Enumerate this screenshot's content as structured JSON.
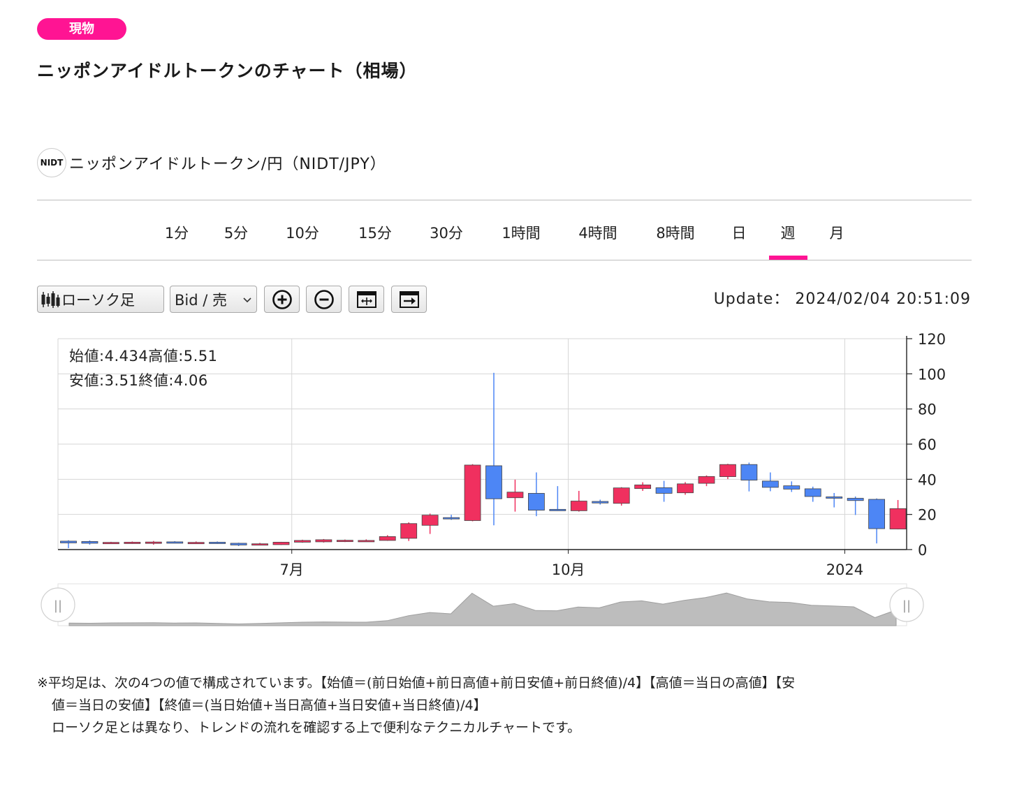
{
  "badge": "現物",
  "page_title": "ニッポンアイドルトークンのチャート（相場）",
  "pair": {
    "logo_text": "NIDT",
    "name": "ニッポンアイドルトークン/円（NIDT/JPY）"
  },
  "tabs": [
    {
      "label": "1分"
    },
    {
      "label": "5分"
    },
    {
      "label": "10分"
    },
    {
      "label": "15分"
    },
    {
      "label": "30分"
    },
    {
      "label": "1時間"
    },
    {
      "label": "4時間"
    },
    {
      "label": "8時間"
    },
    {
      "label": "日"
    },
    {
      "label": "週",
      "active": true
    },
    {
      "label": "月"
    }
  ],
  "toolbar": {
    "chart_type_label": "ローソク足",
    "price_side_label": "Bid / 売",
    "icons": [
      "candlestick-icon",
      "chevron-down-icon",
      "zoom-in-icon",
      "zoom-out-icon",
      "fit-chart-icon",
      "jump-to-latest-icon"
    ]
  },
  "update": {
    "label": "Update：",
    "value": "2024/02/04 20:51:09"
  },
  "ohlc": {
    "open_label": "始値:",
    "open": "4.434",
    "high_label": "高値:",
    "high": "5.51",
    "low_label": "安値:",
    "low": "3.51",
    "close_label": "終値:",
    "close": "4.06"
  },
  "colors": {
    "accent": "#ff1493",
    "up": "#f0305f",
    "down": "#4d86f5",
    "navigator": "#bdbdbd"
  },
  "chart_data": {
    "type": "candlestick",
    "timeframe": "週",
    "yticks": [
      0,
      20,
      40,
      60,
      80,
      100,
      120
    ],
    "ylim": [
      0,
      120
    ],
    "xtick_labels": [
      {
        "label": "7月",
        "index": 10.5
      },
      {
        "label": "10月",
        "index": 23.5
      },
      {
        "label": "2024",
        "index": 36.5
      }
    ],
    "candles": [
      {
        "o": 4.8,
        "h": 5.3,
        "l": 0.8,
        "c": 3.8
      },
      {
        "o": 4.6,
        "h": 5.2,
        "l": 2.8,
        "c": 3.6
      },
      {
        "o": 3.6,
        "h": 4.4,
        "l": 3.2,
        "c": 4.1
      },
      {
        "o": 3.7,
        "h": 4.6,
        "l": 3.3,
        "c": 4.2
      },
      {
        "o": 3.8,
        "h": 4.9,
        "l": 2.8,
        "c": 4.3
      },
      {
        "o": 4.4,
        "h": 4.8,
        "l": 3.6,
        "c": 3.9
      },
      {
        "o": 3.6,
        "h": 4.6,
        "l": 3.3,
        "c": 4.1
      },
      {
        "o": 4.2,
        "h": 4.6,
        "l": 3.3,
        "c": 3.4
      },
      {
        "o": 3.6,
        "h": 3.9,
        "l": 2.0,
        "c": 2.6
      },
      {
        "o": 2.8,
        "h": 3.8,
        "l": 2.6,
        "c": 3.3
      },
      {
        "o": 2.8,
        "h": 4.4,
        "l": 2.6,
        "c": 4.2
      },
      {
        "o": 4.2,
        "h": 5.6,
        "l": 3.9,
        "c": 5.2
      },
      {
        "o": 4.4,
        "h": 6.0,
        "l": 4.0,
        "c": 5.6
      },
      {
        "o": 4.6,
        "h": 5.7,
        "l": 4.3,
        "c": 5.3
      },
      {
        "o": 4.6,
        "h": 5.8,
        "l": 4.4,
        "c": 5.2
      },
      {
        "o": 5.2,
        "h": 8.2,
        "l": 5.0,
        "c": 7.4
      },
      {
        "o": 6.4,
        "h": 15.5,
        "l": 4.9,
        "c": 14.8
      },
      {
        "o": 13.8,
        "h": 20.5,
        "l": 8.9,
        "c": 19.6
      },
      {
        "o": 18.2,
        "h": 19.8,
        "l": 16.9,
        "c": 17.6
      },
      {
        "o": 16.5,
        "h": 48.6,
        "l": 16.1,
        "c": 48.1
      },
      {
        "o": 47.7,
        "h": 100.6,
        "l": 13.8,
        "c": 28.9
      },
      {
        "o": 29.5,
        "h": 39.8,
        "l": 21.6,
        "c": 32.7
      },
      {
        "o": 32.0,
        "h": 43.9,
        "l": 19.0,
        "c": 22.4
      },
      {
        "o": 22.9,
        "h": 36.1,
        "l": 22.0,
        "c": 22.1
      },
      {
        "o": 22.1,
        "h": 33.4,
        "l": 21.6,
        "c": 27.6
      },
      {
        "o": 27.4,
        "h": 28.4,
        "l": 25.6,
        "c": 26.5
      },
      {
        "o": 26.3,
        "h": 35.5,
        "l": 25.0,
        "c": 35.1
      },
      {
        "o": 34.7,
        "h": 38.3,
        "l": 33.4,
        "c": 36.8
      },
      {
        "o": 35.2,
        "h": 39.1,
        "l": 27.2,
        "c": 32.0
      },
      {
        "o": 32.3,
        "h": 38.4,
        "l": 31.2,
        "c": 37.4
      },
      {
        "o": 37.7,
        "h": 42.2,
        "l": 36.1,
        "c": 41.6
      },
      {
        "o": 41.5,
        "h": 48.8,
        "l": 40.1,
        "c": 48.4
      },
      {
        "o": 48.4,
        "h": 49.5,
        "l": 33.1,
        "c": 39.5
      },
      {
        "o": 39.0,
        "h": 43.9,
        "l": 33.2,
        "c": 35.4
      },
      {
        "o": 36.3,
        "h": 38.8,
        "l": 32.8,
        "c": 34.4
      },
      {
        "o": 34.6,
        "h": 35.8,
        "l": 27.2,
        "c": 30.2
      },
      {
        "o": 30.0,
        "h": 32.2,
        "l": 24.0,
        "c": 29.2
      },
      {
        "o": 29.2,
        "h": 30.2,
        "l": 19.7,
        "c": 27.9
      },
      {
        "o": 28.6,
        "h": 29.1,
        "l": 3.5,
        "c": 11.9
      },
      {
        "o": 11.7,
        "h": 28.2,
        "l": 11.5,
        "c": 23.3
      }
    ],
    "navigator": {
      "handle_left": "||",
      "handle_right": "||"
    }
  },
  "note": {
    "line1": "※平均足は、次の4つの値で構成されています。【始値＝(前日始値+前日高値+前日安値+前日終値)/4】【高値＝当日の高値】【安",
    "line2": "値＝当日の安値】【終値＝(当日始値+当日高値+当日安値+当日終値)/4】",
    "line3": "ローソク足とは異なり、トレンドの流れを確認する上で便利なテクニカルチャートです。"
  }
}
